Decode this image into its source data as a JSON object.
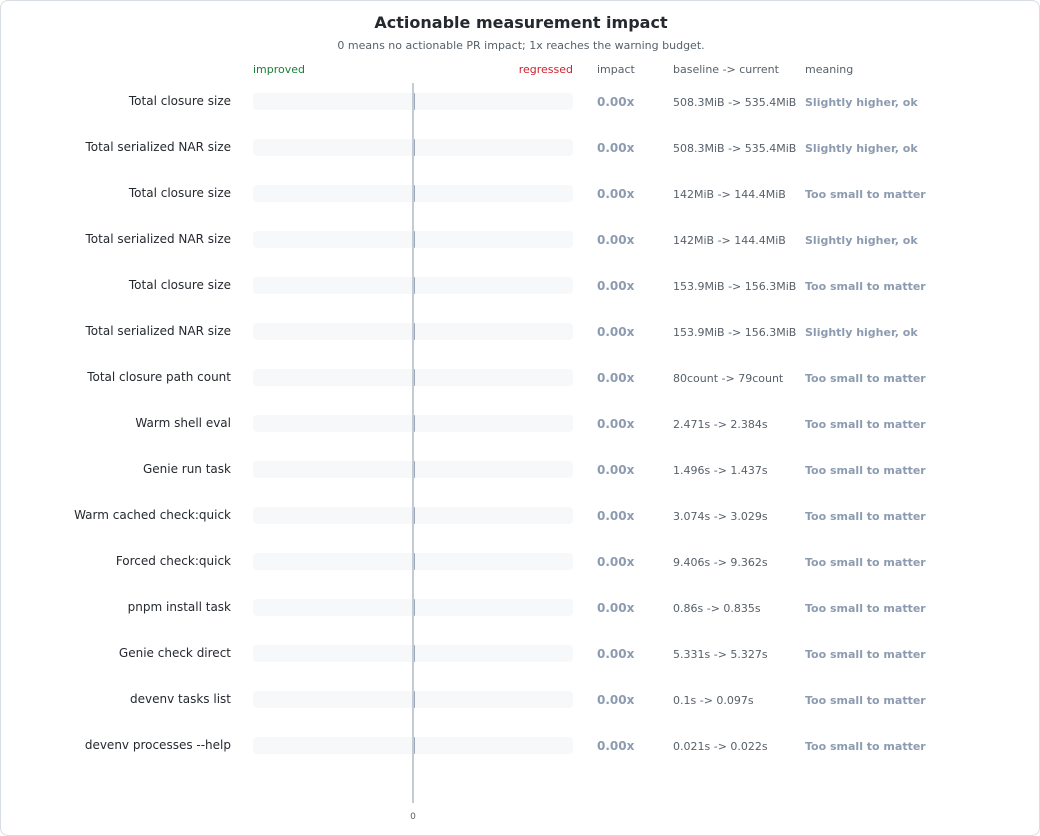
{
  "chart_data": {
    "type": "bar",
    "orientation": "horizontal",
    "title": "Actionable measurement impact",
    "subtitle": "0 means no actionable PR impact; 1x reaches the warning budget.",
    "axis": {
      "left_label": "improved",
      "right_label": "regressed",
      "zero_tick": "0",
      "xlim": [
        -1,
        1
      ]
    },
    "columns": {
      "impact": "impact",
      "baseline": "baseline -> current",
      "meaning": "meaning"
    },
    "colors": {
      "improved": "#1a7f37",
      "regressed": "#cf222e",
      "bar": "#9aa8ba",
      "muted": "#8c9bb0"
    },
    "rows": [
      {
        "label": "Total closure size",
        "value": 0.0,
        "impact": "0.00x",
        "baseline": "508.3MiB -> 535.4MiB",
        "meaning": "Slightly higher, ok"
      },
      {
        "label": "Total serialized NAR size",
        "value": 0.0,
        "impact": "0.00x",
        "baseline": "508.3MiB -> 535.4MiB",
        "meaning": "Slightly higher, ok"
      },
      {
        "label": "Total closure size",
        "value": 0.0,
        "impact": "0.00x",
        "baseline": "142MiB -> 144.4MiB",
        "meaning": "Too small to matter"
      },
      {
        "label": "Total serialized NAR size",
        "value": 0.0,
        "impact": "0.00x",
        "baseline": "142MiB -> 144.4MiB",
        "meaning": "Slightly higher, ok"
      },
      {
        "label": "Total closure size",
        "value": 0.0,
        "impact": "0.00x",
        "baseline": "153.9MiB -> 156.3MiB",
        "meaning": "Too small to matter"
      },
      {
        "label": "Total serialized NAR size",
        "value": 0.0,
        "impact": "0.00x",
        "baseline": "153.9MiB -> 156.3MiB",
        "meaning": "Slightly higher, ok"
      },
      {
        "label": "Total closure path count",
        "value": 0.0,
        "impact": "0.00x",
        "baseline": "80count -> 79count",
        "meaning": "Too small to matter"
      },
      {
        "label": "Warm shell eval",
        "value": 0.0,
        "impact": "0.00x",
        "baseline": "2.471s -> 2.384s",
        "meaning": "Too small to matter"
      },
      {
        "label": "Genie run task",
        "value": 0.0,
        "impact": "0.00x",
        "baseline": "1.496s -> 1.437s",
        "meaning": "Too small to matter"
      },
      {
        "label": "Warm cached check:quick",
        "value": 0.0,
        "impact": "0.00x",
        "baseline": "3.074s -> 3.029s",
        "meaning": "Too small to matter"
      },
      {
        "label": "Forced check:quick",
        "value": 0.0,
        "impact": "0.00x",
        "baseline": "9.406s -> 9.362s",
        "meaning": "Too small to matter"
      },
      {
        "label": "pnpm install task",
        "value": 0.0,
        "impact": "0.00x",
        "baseline": "0.86s -> 0.835s",
        "meaning": "Too small to matter"
      },
      {
        "label": "Genie check direct",
        "value": 0.0,
        "impact": "0.00x",
        "baseline": "5.331s -> 5.327s",
        "meaning": "Too small to matter"
      },
      {
        "label": "devenv tasks list",
        "value": 0.0,
        "impact": "0.00x",
        "baseline": "0.1s -> 0.097s",
        "meaning": "Too small to matter"
      },
      {
        "label": "devenv processes --help",
        "value": 0.0,
        "impact": "0.00x",
        "baseline": "0.021s -> 0.022s",
        "meaning": "Too small to matter"
      }
    ]
  }
}
